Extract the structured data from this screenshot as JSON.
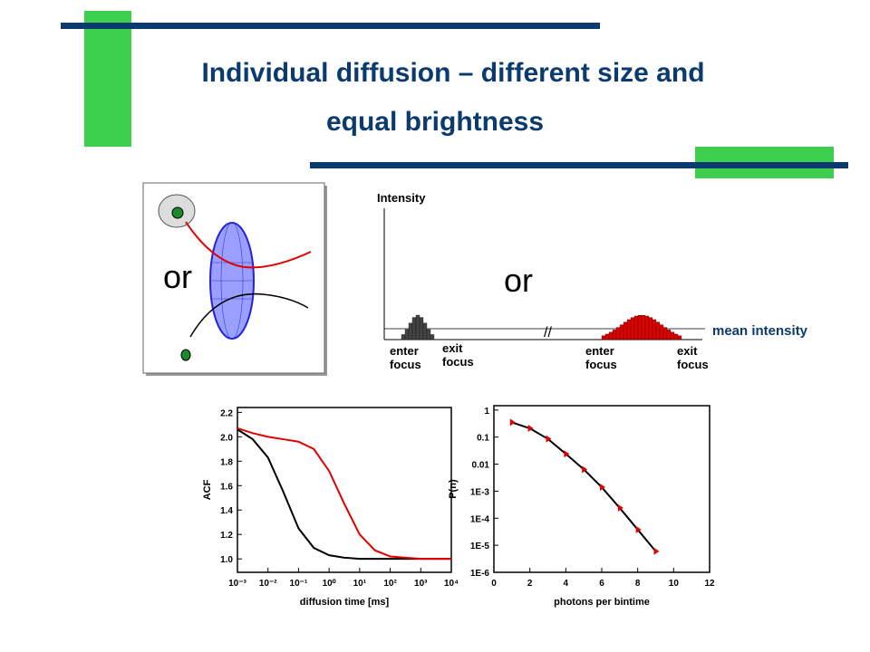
{
  "title_lines": [
    "Individual diffusion – different size and",
    "equal brightness"
  ],
  "diagram": {
    "label": "or"
  },
  "intensity_schematic": {
    "y_label": "Intensity",
    "label": "or",
    "mean_label": "mean intensity",
    "events": [
      {
        "enter": "enter focus",
        "exit": "exit focus"
      },
      {
        "enter": "enter focus",
        "exit": "exit focus"
      }
    ]
  },
  "chart_data": [
    {
      "type": "line",
      "x_label": "diffusion time [ms]",
      "y_label": "ACF",
      "x_scale": "log",
      "xlim": [
        0.001,
        10000
      ],
      "xticks": [
        {
          "value": 0.001,
          "label": "10⁻³"
        },
        {
          "value": 0.01,
          "label": "10⁻²"
        },
        {
          "value": 0.1,
          "label": "10⁻¹"
        },
        {
          "value": 1,
          "label": "10⁰"
        },
        {
          "value": 10,
          "label": "10¹"
        },
        {
          "value": 100,
          "label": "10²"
        },
        {
          "value": 1000,
          "label": "10³"
        },
        {
          "value": 10000,
          "label": "10⁴"
        }
      ],
      "ylim": [
        0.89,
        2.24
      ],
      "yticks": [
        {
          "value": 1,
          "label": "1.0"
        },
        1.2,
        1.4,
        1.6,
        1.8,
        {
          "value": 2,
          "label": "2.0"
        },
        2.2
      ],
      "x": [
        0.001,
        0.00316,
        0.01,
        0.0316,
        0.1,
        0.316,
        1,
        3.16,
        10,
        31.6,
        100,
        1000,
        10000
      ],
      "series": [
        {
          "color": "#000000",
          "values": [
            2.06,
            1.98,
            1.83,
            1.55,
            1.25,
            1.09,
            1.03,
            1.01,
            1.0,
            1.0,
            1.0,
            1.0,
            1.0
          ]
        },
        {
          "color": "#e00000",
          "values": [
            2.07,
            2.03,
            2.0,
            1.98,
            1.96,
            1.9,
            1.72,
            1.45,
            1.2,
            1.07,
            1.02,
            1.0,
            1.0
          ]
        }
      ]
    },
    {
      "type": "line",
      "x_label": "photons per bintime",
      "y_label": "P(n)",
      "y_scale": "log",
      "xlim": [
        0,
        12
      ],
      "xticks": [
        0,
        2,
        4,
        6,
        8,
        10,
        12
      ],
      "ylim": [
        1e-06,
        1.45
      ],
      "yticks": [
        1,
        0.1,
        0.01,
        {
          "value": 0.001,
          "label": "1E-3"
        },
        {
          "value": 0.0001,
          "label": "1E-4"
        },
        {
          "value": 1e-05,
          "label": "1E-5"
        },
        {
          "value": 1e-06,
          "label": "1E-6"
        }
      ],
      "x": [
        1,
        2,
        3,
        4,
        5,
        6,
        7,
        8,
        9
      ],
      "series": [
        {
          "color": "#000000",
          "marker_color": "#e00000",
          "values": [
            0.35,
            0.21,
            0.086,
            0.024,
            0.0064,
            0.0014,
            0.00024,
            3.8e-05,
            6e-06
          ]
        }
      ]
    }
  ]
}
